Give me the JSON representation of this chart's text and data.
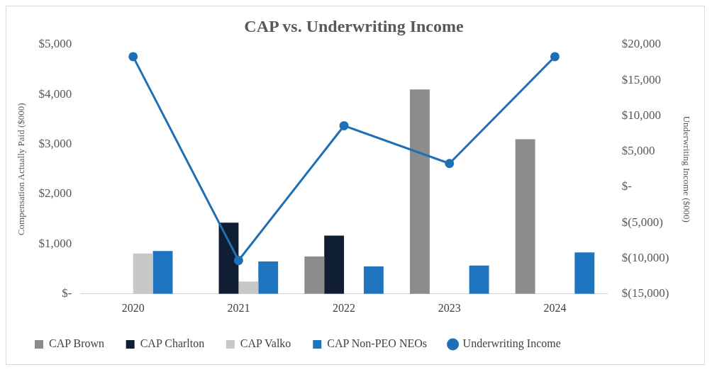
{
  "chart_data": {
    "type": "bar",
    "title": "CAP vs. Underwriting Income",
    "ylabel": "Compensation Actually Paid ($000)",
    "y2label": "Underwriting Income ($000)",
    "categories": [
      "2020",
      "2021",
      "2022",
      "2023",
      "2024"
    ],
    "series": [
      {
        "name": "CAP Brown",
        "color": "#8c8c8e",
        "values": [
          null,
          null,
          750,
          4100,
          3100
        ]
      },
      {
        "name": "CAP Charlton",
        "color": "#0f1e33",
        "values": [
          null,
          1430,
          1170,
          null,
          null
        ]
      },
      {
        "name": "CAP Valko",
        "color": "#c8c8c8",
        "values": [
          810,
          250,
          null,
          null,
          null
        ]
      },
      {
        "name": "CAP Non-PEO NEOs",
        "color": "#1f74c0",
        "values": [
          860,
          650,
          550,
          570,
          830
        ]
      },
      {
        "name": "Underwriting Income",
        "type": "line",
        "axis": "y2",
        "color": "#1f6fb5",
        "marker": "circle",
        "values": [
          18300,
          -10300,
          8600,
          3300,
          18300
        ]
      }
    ],
    "ylim": [
      0,
      5000
    ],
    "yticks": [
      {
        "value": 0,
        "label": "$-"
      },
      {
        "value": 1000,
        "label": "$1,000"
      },
      {
        "value": 2000,
        "label": "$2,000"
      },
      {
        "value": 3000,
        "label": "$3,000"
      },
      {
        "value": 4000,
        "label": "$4,000"
      },
      {
        "value": 5000,
        "label": "$5,000"
      }
    ],
    "y2lim": [
      -15000,
      20000
    ],
    "y2ticks": [
      {
        "value": -15000,
        "label": "$(15,000)"
      },
      {
        "value": -10000,
        "label": "$(10,000)"
      },
      {
        "value": -5000,
        "label": "$(5,000)"
      },
      {
        "value": 0,
        "label": "$-"
      },
      {
        "value": 5000,
        "label": "$5,000"
      },
      {
        "value": 10000,
        "label": "$10,000"
      },
      {
        "value": 15000,
        "label": "$15,000"
      },
      {
        "value": 20000,
        "label": "$20,000"
      }
    ],
    "grid": false,
    "legend": "bottom"
  }
}
